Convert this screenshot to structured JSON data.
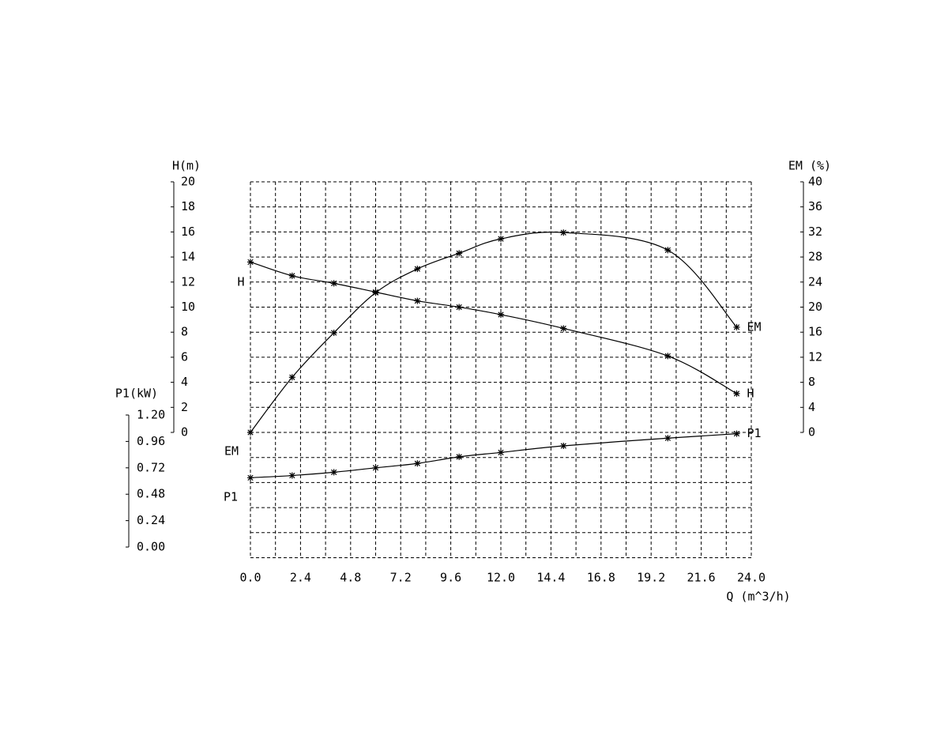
{
  "chart_data": {
    "type": "line",
    "x_label": "Q (m^3/h)",
    "y_label": "H(m)",
    "y2_label": "EM (%)",
    "y3_label": "P1(kW)",
    "x": [
      0,
      2,
      4,
      6,
      8,
      10,
      12,
      15,
      20,
      23.3
    ],
    "series": [
      {
        "name": "H",
        "color": "#000000",
        "axis": "y",
        "values": [
          13.6,
          12.5,
          11.9,
          11.2,
          10.5,
          10.0,
          9.4,
          8.3,
          6.1,
          3.1
        ]
      },
      {
        "name": "EM",
        "color": "#000000",
        "axis": "y2",
        "values": [
          0,
          8.8,
          15.9,
          22.3,
          26.1,
          28.6,
          30.9,
          31.9,
          29.1,
          16.8
        ]
      },
      {
        "name": "P1",
        "color": "#000000",
        "axis": "y3",
        "values": [
          0.63,
          0.65,
          0.68,
          0.72,
          0.76,
          0.82,
          0.86,
          0.92,
          0.99,
          1.03
        ]
      }
    ],
    "xlim": [
      0,
      24
    ],
    "xticks": [
      {
        "value": 0,
        "label": "0.0"
      },
      2.4,
      4.8,
      7.2,
      9.6,
      {
        "value": 12,
        "label": "12.0"
      },
      14.4,
      16.8,
      19.2,
      21.6,
      {
        "value": 24,
        "label": "24.0"
      }
    ],
    "ylim": [
      0,
      20
    ],
    "yticks": [
      0,
      2,
      4,
      6,
      8,
      10,
      12,
      14,
      16,
      18,
      20
    ],
    "y2lim": [
      0,
      40
    ],
    "y2ticks": [
      0,
      4,
      8,
      12,
      16,
      20,
      24,
      28,
      32,
      36,
      40
    ],
    "y3lim": [
      0,
      1.2
    ],
    "y3ticks": [
      {
        "value": 0,
        "label": "0.00"
      },
      0.24,
      0.48,
      0.72,
      0.96,
      {
        "value": 1.2,
        "label": "1.20"
      }
    ],
    "grid": true,
    "marker": "asterisk"
  }
}
